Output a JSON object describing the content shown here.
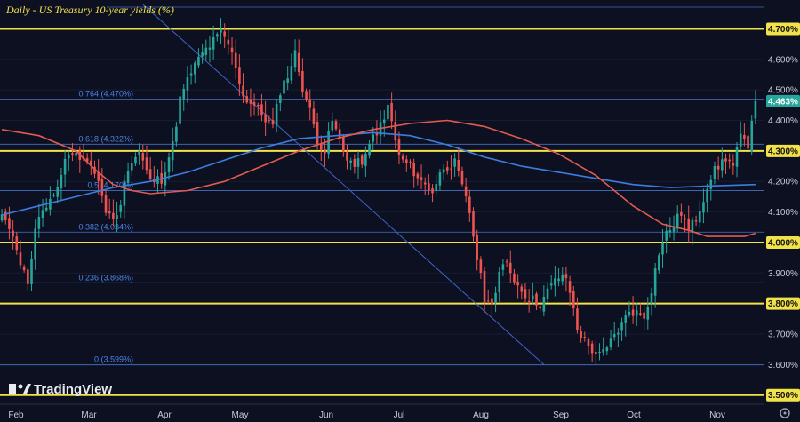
{
  "title": "Daily - US Treasury 10-year yields (%)",
  "brand": "TradingView",
  "colors": {
    "background": "#0c1021",
    "up": "#26a69a",
    "down": "#ef5350",
    "sma_red": "#e35a4f",
    "sma_blue": "#3c7de0",
    "horizontal": "#f2e24a",
    "fib": "#4f83e6",
    "trendline": "#3f63c8"
  },
  "chart_data": {
    "type": "candlestick",
    "title": "Daily - US Treasury 10-year yields (%)",
    "x_tick_labels": [
      "Feb",
      "Mar",
      "Apr",
      "May",
      "Jun",
      "Jul",
      "Aug",
      "Sep",
      "Oct",
      "Nov"
    ],
    "y_tick_labels": [
      "4.700%",
      "4.600%",
      "4.500%",
      "4.463%",
      "4.400%",
      "4.300%",
      "4.200%",
      "4.100%",
      "4.000%",
      "3.900%",
      "3.800%",
      "3.700%",
      "3.600%",
      "3.500%"
    ],
    "ylim": [
      3.47,
      4.78
    ],
    "last_price": 4.463,
    "last_price_label": "4.463%",
    "horizontal_levels": [
      4.7,
      4.3,
      4.0,
      3.8,
      3.5
    ],
    "fib_levels": [
      {
        "value": 4.47,
        "label": "0.764 (4.470%)"
      },
      {
        "value": 4.322,
        "label": "0.618 (4.322%)"
      },
      {
        "value": 4.17,
        "label": "0.5 (4.170%)"
      },
      {
        "value": 4.034,
        "label": "0.382 (4.034%)"
      },
      {
        "value": 3.868,
        "label": "0.236 (3.868%)"
      },
      {
        "value": 3.599,
        "label": "0 (3.599%)"
      }
    ],
    "anchors": [
      [
        0,
        4.08
      ],
      [
        4,
        3.98
      ],
      [
        7,
        3.85
      ],
      [
        9,
        4.05
      ],
      [
        13,
        4.13
      ],
      [
        18,
        4.3
      ],
      [
        22,
        4.27
      ],
      [
        26,
        4.21
      ],
      [
        28,
        4.1
      ],
      [
        31,
        4.08
      ],
      [
        34,
        4.25
      ],
      [
        37,
        4.3
      ],
      [
        40,
        4.2
      ],
      [
        43,
        4.21
      ],
      [
        46,
        4.32
      ],
      [
        48,
        4.47
      ],
      [
        51,
        4.56
      ],
      [
        54,
        4.62
      ],
      [
        57,
        4.66
      ],
      [
        59,
        4.69
      ],
      [
        61,
        4.65
      ],
      [
        63,
        4.58
      ],
      [
        65,
        4.48
      ],
      [
        68,
        4.45
      ],
      [
        70,
        4.42
      ],
      [
        73,
        4.38
      ],
      [
        75,
        4.5
      ],
      [
        77,
        4.55
      ],
      [
        79,
        4.62
      ],
      [
        81,
        4.51
      ],
      [
        83,
        4.43
      ],
      [
        85,
        4.34
      ],
      [
        87,
        4.3
      ],
      [
        89,
        4.4
      ],
      [
        92,
        4.3
      ],
      [
        95,
        4.25
      ],
      [
        98,
        4.28
      ],
      [
        100,
        4.35
      ],
      [
        103,
        4.4
      ],
      [
        104,
        4.45
      ],
      [
        107,
        4.28
      ],
      [
        110,
        4.25
      ],
      [
        113,
        4.2
      ],
      [
        116,
        4.17
      ],
      [
        119,
        4.25
      ],
      [
        122,
        4.26
      ],
      [
        124,
        4.18
      ],
      [
        126,
        4.1
      ],
      [
        128,
        3.95
      ],
      [
        130,
        3.82
      ],
      [
        132,
        3.78
      ],
      [
        134,
        3.9
      ],
      [
        136,
        3.93
      ],
      [
        139,
        3.86
      ],
      [
        142,
        3.82
      ],
      [
        145,
        3.8
      ],
      [
        148,
        3.86
      ],
      [
        151,
        3.9
      ],
      [
        153,
        3.84
      ],
      [
        155,
        3.72
      ],
      [
        158,
        3.66
      ],
      [
        161,
        3.63
      ],
      [
        163,
        3.65
      ],
      [
        165,
        3.7
      ],
      [
        167,
        3.73
      ],
      [
        169,
        3.78
      ],
      [
        171,
        3.77
      ],
      [
        173,
        3.76
      ],
      [
        175,
        3.85
      ],
      [
        177,
        3.97
      ],
      [
        179,
        4.03
      ],
      [
        181,
        4.06
      ],
      [
        183,
        4.1
      ],
      [
        185,
        4.04
      ],
      [
        187,
        4.08
      ],
      [
        189,
        4.15
      ],
      [
        191,
        4.22
      ],
      [
        193,
        4.25
      ],
      [
        195,
        4.28
      ],
      [
        197,
        4.25
      ],
      [
        199,
        4.35
      ],
      [
        201,
        4.3
      ],
      [
        203,
        4.463
      ]
    ],
    "sma_red": [
      [
        0,
        4.37
      ],
      [
        10,
        4.35
      ],
      [
        20,
        4.3
      ],
      [
        25,
        4.24
      ],
      [
        30,
        4.19
      ],
      [
        35,
        4.17
      ],
      [
        40,
        4.16
      ],
      [
        50,
        4.17
      ],
      [
        60,
        4.2
      ],
      [
        70,
        4.25
      ],
      [
        80,
        4.3
      ],
      [
        90,
        4.34
      ],
      [
        100,
        4.37
      ],
      [
        110,
        4.39
      ],
      [
        120,
        4.4
      ],
      [
        130,
        4.38
      ],
      [
        140,
        4.34
      ],
      [
        150,
        4.29
      ],
      [
        160,
        4.22
      ],
      [
        170,
        4.12
      ],
      [
        178,
        4.06
      ],
      [
        185,
        4.04
      ],
      [
        190,
        4.02
      ],
      [
        200,
        4.02
      ],
      [
        203,
        4.03
      ]
    ],
    "sma_blue": [
      [
        0,
        4.09
      ],
      [
        10,
        4.12
      ],
      [
        20,
        4.15
      ],
      [
        30,
        4.18
      ],
      [
        40,
        4.2
      ],
      [
        50,
        4.23
      ],
      [
        60,
        4.27
      ],
      [
        70,
        4.31
      ],
      [
        80,
        4.34
      ],
      [
        90,
        4.35
      ],
      [
        100,
        4.36
      ],
      [
        110,
        4.35
      ],
      [
        120,
        4.32
      ],
      [
        130,
        4.28
      ],
      [
        140,
        4.25
      ],
      [
        150,
        4.23
      ],
      [
        160,
        4.21
      ],
      [
        170,
        4.19
      ],
      [
        180,
        4.18
      ],
      [
        190,
        4.185
      ],
      [
        203,
        4.19
      ]
    ],
    "trendline": [
      [
        38,
        4.78
      ],
      [
        146,
        3.6
      ]
    ]
  }
}
